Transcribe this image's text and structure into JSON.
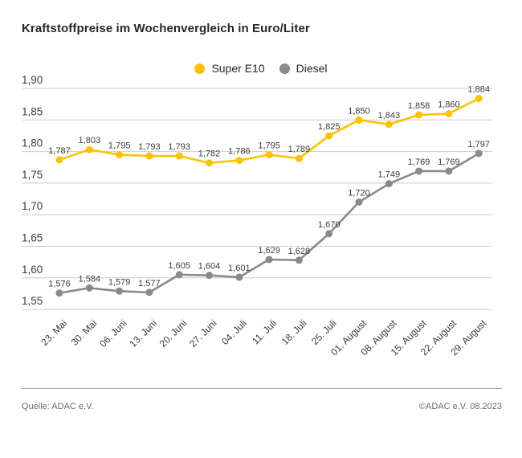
{
  "title": "Kraftstoffpreise im Wochenvergleich in Euro/Liter",
  "footer": {
    "source": "Quelle: ADAC e.V.",
    "copyright": "©ADAC e.V. 08.2023"
  },
  "colors": {
    "super_e10": "#fdc300",
    "diesel": "#8a8a8a",
    "gridline": "#cccccc",
    "tick_text": "#3c3c3c",
    "value_text": "#3c3c3c"
  },
  "chart_data": {
    "type": "line",
    "title": "Kraftstoffpreise im Wochenvergleich in Euro/Liter",
    "xlabel": "",
    "ylabel": "Euro/Liter",
    "grid": true,
    "legend_position": "top-center",
    "ylim": [
      1.55,
      1.9
    ],
    "ytick_step": 0.05,
    "ytick_labels": [
      "1,90",
      "1,85",
      "1,80",
      "1,75",
      "1,70",
      "1,65",
      "1,60",
      "1,55"
    ],
    "categories": [
      "23. Mai",
      "30. Mai",
      "06. Juni",
      "13. Juni",
      "20. Juni",
      "27. Juni",
      "04. Juli",
      "11. Juli",
      "18. Juli",
      "25. Juli",
      "01. August",
      "08. August",
      "15. August",
      "22. August",
      "29. August"
    ],
    "series": [
      {
        "name": "Super E10",
        "color": "#fdc300",
        "values": [
          1.787,
          1.803,
          1.795,
          1.793,
          1.793,
          1.782,
          1.786,
          1.795,
          1.789,
          1.825,
          1.85,
          1.843,
          1.858,
          1.86,
          1.884
        ],
        "value_labels": [
          "1,787",
          "1,803",
          "1,795",
          "1,793",
          "1,793",
          "1,782",
          "1,786",
          "1,795",
          "1,789",
          "1,825",
          "1,850",
          "1,843",
          "1,858",
          "1,860",
          "1,884"
        ]
      },
      {
        "name": "Diesel",
        "color": "#8a8a8a",
        "values": [
          1.576,
          1.584,
          1.579,
          1.577,
          1.605,
          1.604,
          1.601,
          1.629,
          1.628,
          1.67,
          1.72,
          1.749,
          1.769,
          1.769,
          1.797
        ],
        "value_labels": [
          "1,576",
          "1,584",
          "1,579",
          "1,577",
          "1,605",
          "1,604",
          "1,601",
          "1,629",
          "1,628",
          "1,670",
          "1,720",
          "1,749",
          "1,769",
          "1,769",
          "1,797"
        ]
      }
    ]
  }
}
